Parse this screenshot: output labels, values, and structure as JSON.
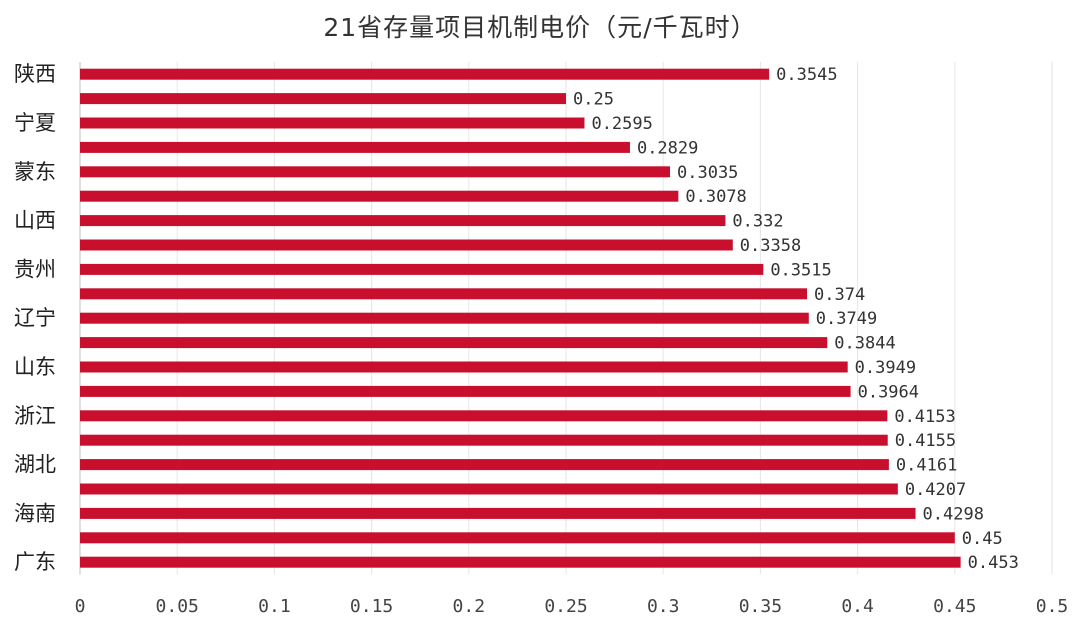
{
  "chart_data": {
    "type": "bar",
    "orientation": "horizontal",
    "title": "21省存量项目机制电价（元/千瓦时）",
    "categories": [
      "陕西",
      "",
      "宁夏",
      "",
      "蒙东",
      "",
      "山西",
      "",
      "贵州",
      "",
      "辽宁",
      "",
      "山东",
      "",
      "浙江",
      "",
      "湖北",
      "",
      "海南",
      "",
      "广东"
    ],
    "values": [
      0.3545,
      0.25,
      0.2595,
      0.2829,
      0.3035,
      0.3078,
      0.332,
      0.3358,
      0.3515,
      0.374,
      0.3749,
      0.3844,
      0.3949,
      0.3964,
      0.4153,
      0.4155,
      0.4161,
      0.4207,
      0.4298,
      0.45,
      0.453
    ],
    "value_labels": [
      "0.3545",
      "0.25",
      "0.2595",
      "0.2829",
      "0.3035",
      "0.3078",
      "0.332",
      "0.3358",
      "0.3515",
      "0.374",
      "0.3749",
      "0.3844",
      "0.3949",
      "0.3964",
      "0.4153",
      "0.4155",
      "0.4161",
      "0.4207",
      "0.4298",
      "0.45",
      "0.453"
    ],
    "xlim": [
      0,
      0.5
    ],
    "x_ticks": [
      "0",
      "0.05",
      "0.1",
      "0.15",
      "0.2",
      "0.25",
      "0.3",
      "0.35",
      "0.4",
      "0.45",
      "0.5"
    ],
    "grid": true,
    "bar_color": "#c8102e"
  }
}
